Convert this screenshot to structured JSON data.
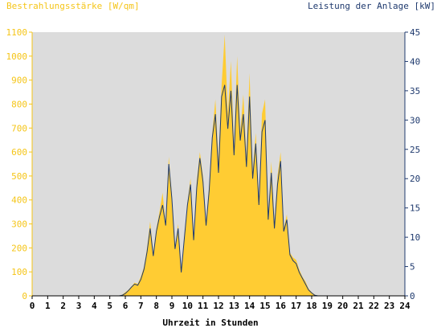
{
  "chart_data": {
    "type": "area",
    "title_left": "Bestrahlungsstärke [W/qm]",
    "title_right": "Leistung der Anlage [kW]",
    "xlabel": "Uhrzeit in Stunden",
    "xlim": [
      0,
      24
    ],
    "x_ticks": [
      "0",
      "1",
      "2",
      "3",
      "4",
      "5",
      "6",
      "7",
      "8",
      "9",
      "10",
      "11",
      "12",
      "13",
      "14",
      "15",
      "16",
      "17",
      "18",
      "19",
      "20",
      "21",
      "22",
      "23",
      "24"
    ],
    "y_left_lim": [
      0,
      1100
    ],
    "y_left_ticks": [
      "0",
      "100",
      "200",
      "300",
      "400",
      "500",
      "600",
      "700",
      "800",
      "900",
      "1000",
      "1100"
    ],
    "y_right_lim": [
      0,
      45
    ],
    "y_right_ticks": [
      "0",
      "5",
      "10",
      "15",
      "20",
      "25",
      "30",
      "35",
      "40",
      "45"
    ],
    "colors": {
      "irradiance": "#ffcc33",
      "power": "#1f3a6e",
      "plot_bg": "#dcdcdc",
      "left_axis": "#f5c518",
      "right_axis": "#1f3a6e"
    },
    "series": [
      {
        "key": "irradiance",
        "axis": "left",
        "x": [
          0,
          5.6,
          5.8,
          6.0,
          6.2,
          6.4,
          6.6,
          6.8,
          7.0,
          7.2,
          7.4,
          7.6,
          7.8,
          8.0,
          8.2,
          8.4,
          8.6,
          8.8,
          9.0,
          9.2,
          9.4,
          9.6,
          9.8,
          10.0,
          10.2,
          10.4,
          10.6,
          10.8,
          11.0,
          11.2,
          11.4,
          11.6,
          11.8,
          12.0,
          12.2,
          12.4,
          12.6,
          12.8,
          13.0,
          13.2,
          13.4,
          13.6,
          13.8,
          14.0,
          14.2,
          14.4,
          14.6,
          14.8,
          15.0,
          15.2,
          15.4,
          15.6,
          15.8,
          16.0,
          16.2,
          16.4,
          16.6,
          16.8,
          17.0,
          17.2,
          17.4,
          17.6,
          17.8,
          18.0,
          18.2,
          18.4,
          18.6,
          18.8,
          19.0,
          19.2,
          24
        ],
        "values": [
          0,
          0,
          5,
          15,
          25,
          40,
          55,
          50,
          80,
          120,
          200,
          310,
          180,
          280,
          350,
          430,
          300,
          580,
          420,
          200,
          300,
          110,
          250,
          390,
          490,
          240,
          480,
          600,
          500,
          310,
          460,
          680,
          820,
          560,
          880,
          1090,
          760,
          980,
          620,
          1000,
          680,
          840,
          580,
          930,
          520,
          680,
          400,
          760,
          820,
          340,
          560,
          300,
          500,
          600,
          280,
          340,
          180,
          160,
          150,
          110,
          80,
          60,
          30,
          15,
          5,
          0,
          0,
          0,
          0,
          0,
          0
        ]
      },
      {
        "key": "power",
        "axis": "right",
        "x": [
          0,
          5.6,
          5.8,
          6.0,
          6.2,
          6.4,
          6.6,
          6.8,
          7.0,
          7.2,
          7.4,
          7.6,
          7.8,
          8.0,
          8.2,
          8.4,
          8.6,
          8.8,
          9.0,
          9.2,
          9.4,
          9.6,
          9.8,
          10.0,
          10.2,
          10.4,
          10.6,
          10.8,
          11.0,
          11.2,
          11.4,
          11.6,
          11.8,
          12.0,
          12.2,
          12.4,
          12.6,
          12.8,
          13.0,
          13.2,
          13.4,
          13.6,
          13.8,
          14.0,
          14.2,
          14.4,
          14.6,
          14.8,
          15.0,
          15.2,
          15.4,
          15.6,
          15.8,
          16.0,
          16.2,
          16.4,
          16.6,
          16.8,
          17.0,
          17.2,
          17.4,
          17.6,
          17.8,
          18.0,
          18.2,
          18.4,
          18.6,
          18.8,
          19.0,
          19.2,
          24
        ],
        "values": [
          0,
          0,
          0.1,
          0.4,
          0.9,
          1.5,
          2.0,
          1.8,
          2.8,
          4.5,
          7.5,
          11.5,
          6.8,
          11.0,
          13.5,
          15.5,
          12.0,
          22.5,
          16.5,
          8.0,
          11.5,
          4.0,
          9.8,
          15.5,
          19.0,
          9.5,
          18.5,
          23.5,
          19.5,
          12.0,
          18.0,
          27.0,
          31.0,
          21.0,
          34.0,
          36.0,
          28.5,
          35.0,
          24.0,
          36.0,
          26.5,
          31.0,
          22.0,
          34.0,
          20.0,
          26.0,
          15.5,
          28.0,
          30.0,
          13.0,
          21.0,
          11.5,
          19.0,
          23.0,
          11.0,
          13.0,
          7.0,
          6.0,
          5.5,
          4.0,
          3.0,
          2.0,
          1.0,
          0.5,
          0.1,
          0,
          0,
          0,
          0,
          0,
          0
        ]
      }
    ],
    "grid": false,
    "legend": "none"
  }
}
